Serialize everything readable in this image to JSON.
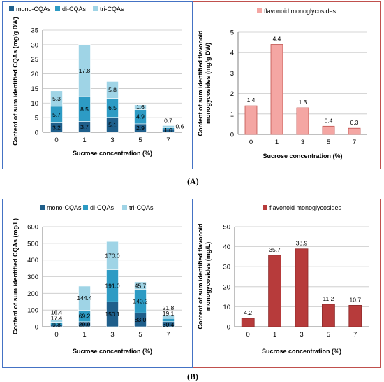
{
  "panel_labels": {
    "a": "(A)",
    "b": "(B)"
  },
  "colors": {
    "mono": "#1f5f8b",
    "di": "#2d9bc4",
    "tri": "#9fd4e6",
    "flav_a": "#f4a6a3",
    "flav_b": "#b73b3b",
    "border_left": "#4472c4",
    "border_right": "#c0504d"
  },
  "chart_data": [
    {
      "id": "a_left",
      "type": "bar",
      "stacked": true,
      "categories": [
        "0",
        "1",
        "3",
        "5",
        "7"
      ],
      "series": [
        {
          "name": "mono-CQAs",
          "values": [
            3.2,
            3.7,
            5.1,
            2.9,
            1.0
          ],
          "labels": [
            "3.2",
            "3.7",
            "5.1",
            "2.9",
            "1.0"
          ]
        },
        {
          "name": "di-CQAs",
          "values": [
            5.7,
            8.5,
            6.5,
            4.9,
            0.6
          ],
          "labels": [
            "5.7",
            "8.5",
            "6.5",
            "4.9",
            "0.6"
          ]
        },
        {
          "name": "tri-CQAs",
          "values": [
            5.3,
            17.8,
            5.8,
            1.6,
            0.7
          ],
          "labels": [
            "5.3",
            "17.8",
            "5.8",
            "1.6",
            "0.7"
          ]
        }
      ],
      "xlabel": "Sucrose concentration (%)",
      "ylabel": "Content of sum identified CQAs (mg/g DW)",
      "ylim": [
        0,
        35
      ],
      "yticks": [
        0,
        5,
        10,
        15,
        20,
        25,
        30,
        35
      ],
      "legend_position": "top"
    },
    {
      "id": "a_right",
      "type": "bar",
      "categories": [
        "0",
        "1",
        "3",
        "5",
        "7"
      ],
      "series": [
        {
          "name": "flavonoid monoglycosides",
          "values": [
            1.4,
            4.4,
            1.3,
            0.4,
            0.3
          ],
          "labels": [
            "1.4",
            "4.4",
            "1.3",
            "0.4",
            "0.3"
          ]
        }
      ],
      "xlabel": "Sucrose concentration (%)",
      "ylabel": "Content of sum identified flavonoid monogycosides (mg/g DW)",
      "ylabel_lines": [
        "Content of sum identified flavonoid",
        "monogycosides (mg/g DW)"
      ],
      "ylim": [
        0,
        5
      ],
      "yticks": [
        0,
        1,
        2,
        3,
        4,
        5
      ],
      "legend_position": "top"
    },
    {
      "id": "b_left",
      "type": "bar",
      "stacked": true,
      "categories": [
        "0",
        "1",
        "3",
        "5",
        "7"
      ],
      "series": [
        {
          "name": "mono-CQAs",
          "values": [
            9.8,
            29.9,
            150.1,
            83.0,
            30.4
          ],
          "labels": [
            "9.8",
            "29.9",
            "150.1",
            "83.0",
            "30.4"
          ]
        },
        {
          "name": "di-CQAs",
          "values": [
            17.4,
            69.2,
            191.0,
            140.2,
            19.1
          ],
          "labels": [
            "17.4",
            "69.2",
            "191.0",
            "140.2",
            "19.1"
          ]
        },
        {
          "name": "tri-CQAs",
          "values": [
            16.4,
            144.4,
            170.0,
            45.7,
            21.8
          ],
          "labels": [
            "16.4",
            "144.4",
            "170.0",
            "45.7",
            "21.8"
          ]
        }
      ],
      "xlabel": "Sucrose concentration (%)",
      "ylabel": "Content of sum identified CQAs (mg/L)",
      "ylim": [
        0,
        600
      ],
      "yticks": [
        0,
        100,
        200,
        300,
        400,
        500,
        600
      ],
      "legend_position": "top"
    },
    {
      "id": "b_right",
      "type": "bar",
      "categories": [
        "0",
        "1",
        "3",
        "5",
        "7"
      ],
      "series": [
        {
          "name": "flavonoid monoglycosides",
          "values": [
            4.2,
            35.7,
            38.9,
            11.2,
            10.7
          ],
          "labels": [
            "4.2",
            "35.7",
            "38.9",
            "11.2",
            "10.7"
          ]
        }
      ],
      "xlabel": "Sucrose concentration (%)",
      "ylabel": "Content of sum identified flavonoid monogycosides (mg/L)",
      "ylabel_lines": [
        "Content of sum identified flavonoid",
        "monogycosides (mg/L)"
      ],
      "ylim": [
        0,
        50
      ],
      "yticks": [
        0,
        10,
        20,
        30,
        40,
        50
      ],
      "legend_position": "top"
    }
  ]
}
